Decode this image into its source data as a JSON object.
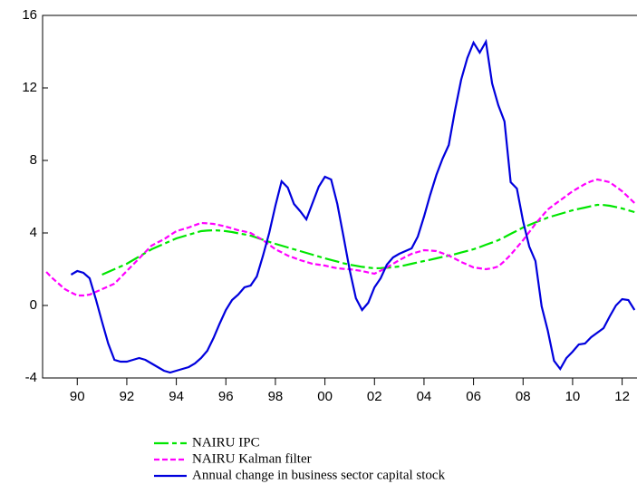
{
  "chart_data": {
    "type": "line",
    "x": [
      1988.75,
      1989,
      1989.25,
      1989.5,
      1989.75,
      1990,
      1990.25,
      1990.5,
      1990.75,
      1991,
      1991.25,
      1991.5,
      1991.75,
      1992,
      1992.25,
      1992.5,
      1992.75,
      1993,
      1993.25,
      1993.5,
      1993.75,
      1994,
      1994.25,
      1994.5,
      1994.75,
      1995,
      1995.25,
      1995.5,
      1995.75,
      1996,
      1996.25,
      1996.5,
      1996.75,
      1997,
      1997.25,
      1997.5,
      1997.75,
      1998,
      1998.25,
      1998.5,
      1998.75,
      1999,
      1999.25,
      1999.5,
      1999.75,
      2000,
      2000.25,
      2000.5,
      2000.75,
      2001,
      2001.25,
      2001.5,
      2001.75,
      2002,
      2002.25,
      2002.5,
      2002.75,
      2003,
      2003.25,
      2003.5,
      2003.75,
      2004,
      2004.25,
      2004.5,
      2004.75,
      2005,
      2005.25,
      2005.5,
      2005.75,
      2006,
      2006.25,
      2006.5,
      2006.75,
      2007,
      2007.25,
      2007.5,
      2007.75,
      2008,
      2008.25,
      2008.5,
      2008.75,
      2009,
      2009.25,
      2009.5,
      2009.75,
      2010,
      2010.25,
      2010.5,
      2010.75,
      2011,
      2011.25,
      2011.5,
      2011.75,
      2012,
      2012.25,
      2012.5
    ],
    "series": [
      {
        "name": "NAIRU IPC",
        "color": "#00e600",
        "dash": "16 4 5 4",
        "values": [
          null,
          null,
          null,
          null,
          null,
          null,
          null,
          null,
          null,
          1.7,
          1.85,
          2.0,
          2.15,
          2.3,
          2.5,
          2.7,
          2.9,
          3.1,
          3.25,
          3.4,
          3.55,
          3.7,
          3.8,
          3.9,
          4.0,
          4.1,
          4.13,
          4.15,
          4.13,
          4.1,
          4.05,
          3.98,
          3.92,
          3.85,
          3.74,
          3.62,
          3.51,
          3.4,
          3.3,
          3.2,
          3.1,
          3.0,
          2.9,
          2.8,
          2.7,
          2.6,
          2.51,
          2.42,
          2.33,
          2.25,
          2.19,
          2.13,
          2.09,
          2.05,
          2.06,
          2.08,
          2.11,
          2.15,
          2.22,
          2.3,
          2.38,
          2.45,
          2.52,
          2.6,
          2.68,
          2.75,
          2.83,
          2.92,
          3.01,
          3.1,
          3.22,
          3.35,
          3.47,
          3.6,
          3.77,
          3.95,
          4.12,
          4.3,
          4.44,
          4.58,
          4.71,
          4.85,
          4.95,
          5.05,
          5.15,
          5.25,
          5.33,
          5.4,
          5.48,
          5.55,
          5.54,
          5.5,
          5.43,
          5.35,
          5.25,
          5.15
        ]
      },
      {
        "name": "NAIRU Kalman filter",
        "color": "#ff00ff",
        "dash": "6 3",
        "values": [
          1.85,
          1.5,
          1.2,
          0.9,
          0.72,
          0.55,
          0.55,
          0.6,
          0.75,
          0.9,
          1.05,
          1.2,
          1.55,
          1.9,
          2.25,
          2.6,
          2.95,
          3.3,
          3.48,
          3.65,
          3.88,
          4.1,
          4.2,
          4.3,
          4.43,
          4.55,
          4.53,
          4.5,
          4.43,
          4.35,
          4.25,
          4.15,
          4.08,
          4.0,
          3.8,
          3.6,
          3.35,
          3.1,
          2.93,
          2.75,
          2.63,
          2.5,
          2.4,
          2.3,
          2.25,
          2.2,
          2.12,
          2.05,
          2.02,
          2.0,
          1.95,
          1.9,
          1.82,
          1.75,
          1.92,
          2.1,
          2.3,
          2.5,
          2.68,
          2.85,
          2.95,
          3.05,
          3.03,
          3.0,
          2.88,
          2.75,
          2.58,
          2.4,
          2.25,
          2.1,
          2.05,
          2.0,
          2.05,
          2.15,
          2.45,
          2.8,
          3.2,
          3.6,
          4.05,
          4.5,
          4.9,
          5.3,
          5.55,
          5.8,
          6.05,
          6.3,
          6.5,
          6.7,
          6.85,
          6.95,
          6.88,
          6.8,
          6.55,
          6.3,
          5.98,
          5.65
        ]
      },
      {
        "name": "Annual change in business sector capital stock",
        "color": "#0000dd",
        "dash": "none",
        "values": [
          null,
          null,
          null,
          null,
          1.7,
          1.9,
          1.8,
          1.5,
          0.35,
          -0.9,
          -2.1,
          -3.0,
          -3.1,
          -3.1,
          -3.0,
          -2.9,
          -3.0,
          -3.2,
          -3.4,
          -3.6,
          -3.7,
          -3.6,
          -3.5,
          -3.4,
          -3.2,
          -2.9,
          -2.5,
          -1.8,
          -1.0,
          -0.25,
          0.3,
          0.6,
          1.0,
          1.1,
          1.6,
          2.75,
          4.0,
          5.5,
          6.85,
          6.5,
          5.6,
          5.2,
          4.75,
          5.65,
          6.55,
          7.1,
          6.95,
          5.6,
          3.8,
          1.95,
          0.4,
          -0.25,
          0.15,
          1.0,
          1.5,
          2.25,
          2.65,
          2.85,
          3.0,
          3.15,
          3.8,
          4.9,
          6.1,
          7.2,
          8.1,
          8.85,
          10.75,
          12.45,
          13.65,
          14.5,
          13.95,
          14.55,
          12.25,
          11.05,
          10.15,
          6.8,
          6.45,
          4.65,
          3.25,
          2.45,
          -0.05,
          -1.4,
          -3.05,
          -3.5,
          -2.9,
          -2.55,
          -2.15,
          -2.1,
          -1.75,
          -1.5,
          -1.25,
          -0.6,
          0.0,
          0.35,
          0.3,
          -0.25
        ]
      }
    ],
    "xlim": [
      1988.6,
      2012.6
    ],
    "xticks": [
      {
        "value": 1990,
        "label": "90"
      },
      {
        "value": 1992,
        "label": "92"
      },
      {
        "value": 1994,
        "label": "94"
      },
      {
        "value": 1996,
        "label": "96"
      },
      {
        "value": 1998,
        "label": "98"
      },
      {
        "value": 2000,
        "label": "00"
      },
      {
        "value": 2002,
        "label": "02"
      },
      {
        "value": 2004,
        "label": "04"
      },
      {
        "value": 2006,
        "label": "06"
      },
      {
        "value": 2008,
        "label": "08"
      },
      {
        "value": 2010,
        "label": "10"
      },
      {
        "value": 2012,
        "label": "12"
      }
    ],
    "ylim": [
      -4,
      16
    ],
    "yticks": [
      -4,
      0,
      4,
      8,
      12,
      16
    ],
    "legend": "bottom"
  }
}
